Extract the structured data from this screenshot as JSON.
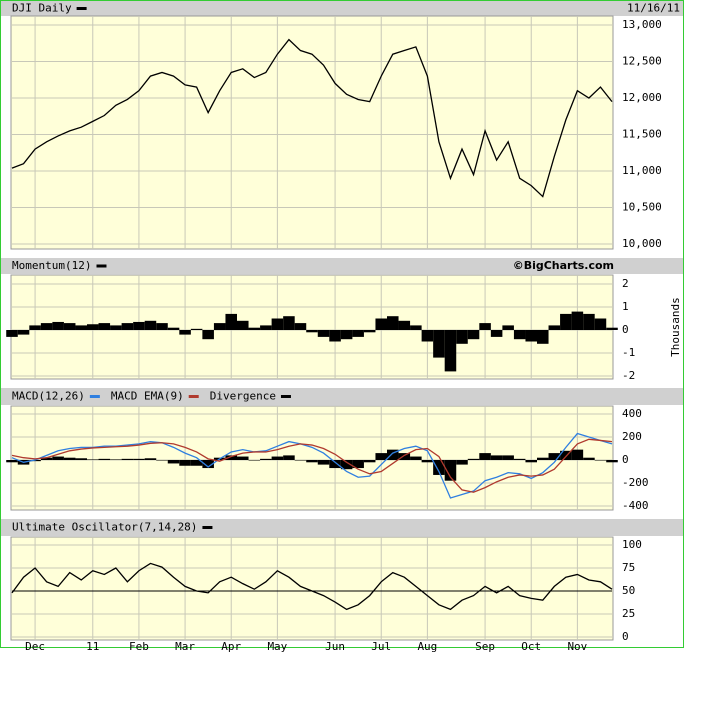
{
  "chart_data": [
    {
      "type": "line",
      "date": "11/16/11",
      "ylim": [
        10000,
        13000
      ],
      "yticks": [
        {
          "value": 10000,
          "label": "10,000"
        },
        {
          "value": 10500,
          "label": "10,500"
        },
        {
          "value": 11000,
          "label": "11,000"
        },
        {
          "value": 11500,
          "label": "11,500"
        },
        {
          "value": 12000,
          "label": "12,000"
        },
        {
          "value": 12500,
          "label": "12,500"
        },
        {
          "value": 13000,
          "label": "13,000"
        }
      ],
      "grid": true,
      "series": [
        {
          "name": "DJI Daily",
          "color": "#000000",
          "values": [
            11040,
            11100,
            11300,
            11400,
            11480,
            11550,
            11600,
            11680,
            11760,
            11900,
            11980,
            12100,
            12300,
            12350,
            12300,
            12180,
            12150,
            11800,
            12100,
            12350,
            12400,
            12280,
            12350,
            12600,
            12800,
            12650,
            12600,
            12450,
            12200,
            12050,
            11980,
            11950,
            12300,
            12600,
            12650,
            12700,
            12300,
            11400,
            10900,
            11300,
            10950,
            11550,
            11150,
            11400,
            10900,
            10800,
            10650,
            11200,
            11700,
            12100,
            12000,
            12150,
            11950
          ]
        }
      ]
    },
    {
      "type": "bar",
      "source": "©BigCharts.com",
      "y_label": "Thousands",
      "ylim": [
        -2,
        2
      ],
      "yticks": [
        -2,
        -1,
        0,
        1,
        2
      ],
      "grid": true,
      "series": [
        {
          "name": "Momentum(12)",
          "color": "#000000",
          "values": [
            -0.3,
            -0.2,
            0.2,
            0.3,
            0.35,
            0.3,
            0.2,
            0.25,
            0.3,
            0.2,
            0.3,
            0.35,
            0.4,
            0.3,
            0.1,
            -0.2,
            0.05,
            -0.4,
            0.3,
            0.7,
            0.4,
            0.1,
            0.2,
            0.5,
            0.6,
            0.3,
            -0.1,
            -0.3,
            -0.5,
            -0.4,
            -0.3,
            -0.1,
            0.5,
            0.6,
            0.4,
            0.2,
            -0.5,
            -1.2,
            -1.8,
            -0.6,
            -0.4,
            0.3,
            -0.3,
            0.2,
            -0.4,
            -0.5,
            -0.6,
            0.2,
            0.7,
            0.8,
            0.7,
            0.5,
            0.1
          ]
        }
      ]
    },
    {
      "type": "line",
      "ylim": [
        -400,
        400
      ],
      "yticks": [
        -400,
        -200,
        0,
        200,
        400
      ],
      "grid": true,
      "series": [
        {
          "name": "MACD(12,26)",
          "color": "#2f7fe0",
          "values": [
            20,
            -20,
            0,
            40,
            80,
            100,
            110,
            110,
            120,
            120,
            130,
            140,
            160,
            150,
            110,
            60,
            20,
            -60,
            10,
            70,
            90,
            70,
            80,
            120,
            160,
            140,
            110,
            60,
            -20,
            -100,
            -150,
            -140,
            -40,
            60,
            100,
            120,
            80,
            -100,
            -330,
            -300,
            -270,
            -180,
            -150,
            -110,
            -120,
            -160,
            -110,
            -20,
            110,
            230,
            200,
            170,
            140
          ]
        },
        {
          "name": "MACD EMA(9)",
          "color": "#b03a2e",
          "values": [
            40,
            20,
            10,
            20,
            50,
            80,
            95,
            105,
            110,
            115,
            120,
            130,
            145,
            150,
            140,
            110,
            70,
            10,
            -10,
            30,
            60,
            70,
            70,
            90,
            120,
            140,
            130,
            100,
            50,
            -20,
            -80,
            -120,
            -100,
            -30,
            40,
            90,
            100,
            30,
            -150,
            -260,
            -280,
            -240,
            -190,
            -150,
            -130,
            -140,
            -130,
            -80,
            30,
            140,
            180,
            170,
            160
          ]
        },
        {
          "name": "Divergence",
          "color": "#000000",
          "type": "bar",
          "values": [
            -20,
            -40,
            -10,
            20,
            30,
            20,
            15,
            5,
            10,
            5,
            10,
            10,
            15,
            0,
            -30,
            -50,
            -50,
            -70,
            20,
            40,
            30,
            0,
            10,
            30,
            40,
            0,
            -20,
            -40,
            -70,
            -80,
            -70,
            -20,
            60,
            90,
            60,
            30,
            -20,
            -130,
            -180,
            -40,
            10,
            60,
            40,
            40,
            10,
            -20,
            20,
            60,
            80,
            90,
            20,
            0,
            -20
          ]
        }
      ]
    },
    {
      "type": "line",
      "ylim": [
        0,
        100
      ],
      "yticks": [
        0,
        25,
        50,
        75,
        100
      ],
      "grid": true,
      "reference_line": 50,
      "categories": [
        null,
        null,
        "Dec",
        null,
        null,
        null,
        null,
        "11",
        null,
        null,
        null,
        "Feb",
        null,
        null,
        null,
        "Mar",
        null,
        null,
        null,
        "Apr",
        null,
        null,
        null,
        "May",
        null,
        null,
        null,
        null,
        "Jun",
        null,
        null,
        null,
        "Jul",
        null,
        null,
        null,
        "Aug",
        null,
        null,
        null,
        null,
        "Sep",
        null,
        null,
        null,
        "Oct",
        null,
        null,
        null,
        "Nov",
        null,
        null,
        null
      ],
      "series": [
        {
          "name": "Ultimate Oscillator(7,14,28)",
          "color": "#000000",
          "values": [
            48,
            65,
            75,
            60,
            55,
            70,
            62,
            72,
            68,
            75,
            60,
            72,
            80,
            76,
            65,
            55,
            50,
            48,
            60,
            65,
            58,
            52,
            60,
            72,
            65,
            55,
            50,
            45,
            38,
            30,
            35,
            45,
            60,
            70,
            65,
            55,
            45,
            35,
            30,
            40,
            45,
            55,
            48,
            55,
            45,
            42,
            40,
            55,
            65,
            68,
            62,
            60,
            52
          ]
        }
      ]
    }
  ]
}
